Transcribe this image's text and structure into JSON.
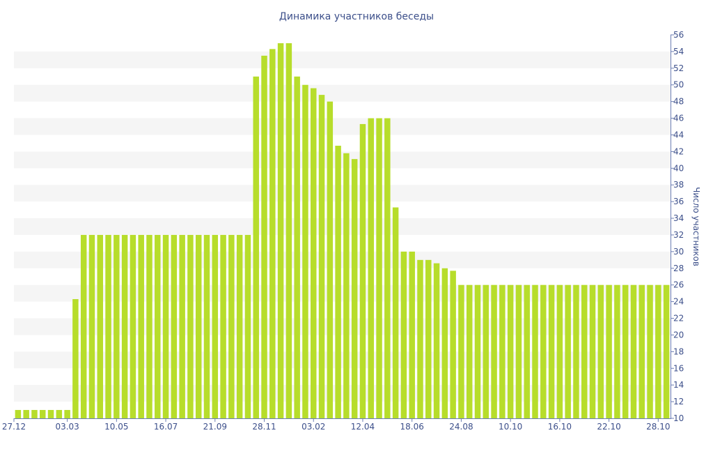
{
  "chart_data": {
    "type": "bar",
    "title": "Динамика участников беседы",
    "ylabel": "Число участников",
    "xlabel": "",
    "ylim": [
      10,
      56
    ],
    "y_ticks": [
      10,
      12,
      14,
      16,
      18,
      20,
      22,
      24,
      26,
      28,
      30,
      32,
      34,
      36,
      38,
      40,
      42,
      44,
      46,
      48,
      50,
      52,
      54,
      56
    ],
    "y_axis_side": "right",
    "x_tick_labels": [
      {
        "label": "27.12",
        "index": 0
      },
      {
        "label": "03.03",
        "index": 6.5
      },
      {
        "label": "10.05",
        "index": 12.5
      },
      {
        "label": "16.07",
        "index": 18.5
      },
      {
        "label": "21.09",
        "index": 24.5
      },
      {
        "label": "28.11",
        "index": 30.5
      },
      {
        "label": "03.02",
        "index": 36.5
      },
      {
        "label": "12.04",
        "index": 42.5
      },
      {
        "label": "18.06",
        "index": 48.5
      },
      {
        "label": "24.08",
        "index": 54.5
      },
      {
        "label": "10.10",
        "index": 60.5
      },
      {
        "label": "16.10",
        "index": 66.5
      },
      {
        "label": "22.10",
        "index": 72.5
      },
      {
        "label": "28.10",
        "index": 78.5
      }
    ],
    "values": [
      11,
      11,
      11,
      11,
      11,
      11,
      11,
      24.3,
      32,
      32,
      32,
      32,
      32,
      32,
      32,
      32,
      32,
      32,
      32,
      32,
      32,
      32,
      32,
      32,
      32,
      32,
      32,
      32,
      32,
      51,
      53.5,
      54.3,
      55,
      55,
      51,
      50,
      49.6,
      48.8,
      48,
      42.7,
      41.8,
      41.1,
      45.3,
      46,
      46,
      46,
      35.3,
      30,
      30,
      29,
      29,
      28.6,
      28,
      27.7,
      26,
      26,
      26,
      26,
      26,
      26,
      26,
      26,
      26,
      26,
      26,
      26,
      26,
      26,
      26,
      26,
      26,
      26,
      26,
      26,
      26,
      26,
      26,
      26,
      26,
      26
    ],
    "bar_color": "#b7dd2b",
    "band_color": "#f5f5f5",
    "text_color": "#3c4f8a",
    "grid": "alternating-bands",
    "legend": "none"
  }
}
